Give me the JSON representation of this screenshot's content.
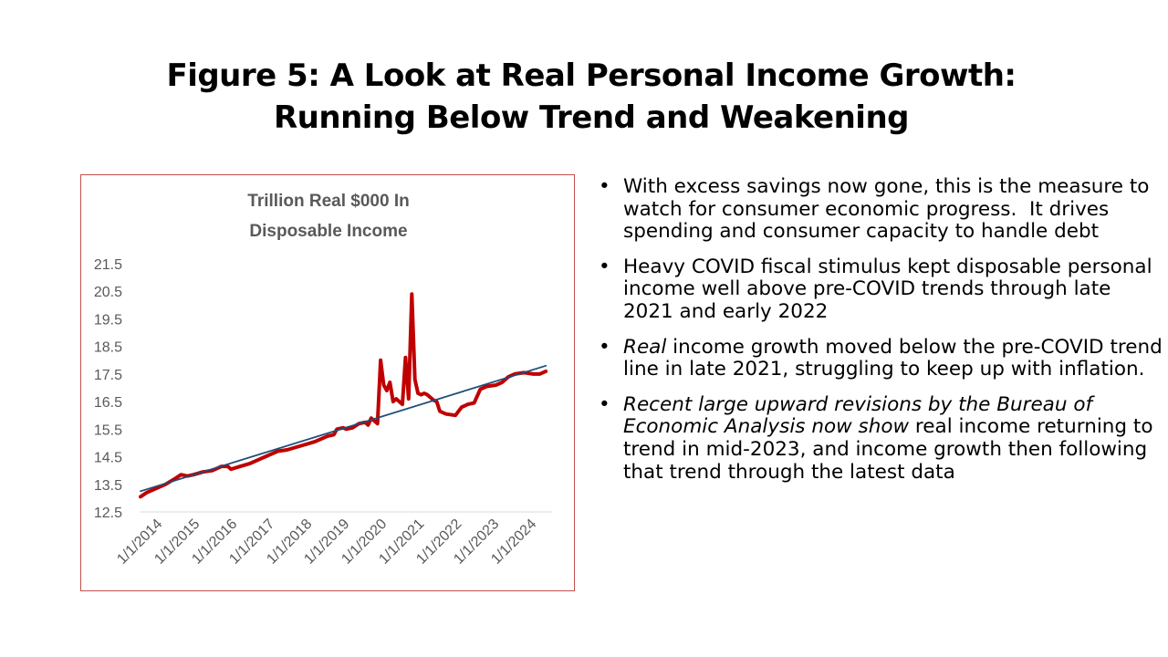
{
  "slide": {
    "title_line1": "Figure 5: A Look at Real Personal Income Growth:",
    "title_line2": "Running Below Trend and Weakening"
  },
  "bullets": [
    {
      "parts": [
        {
          "text": "With excess savings now gone, this is the measure to watch for consumer economic progress.  It drives spending and consumer capacity to handle debt",
          "italic": false
        }
      ]
    },
    {
      "parts": [
        {
          "text": "Heavy COVID fiscal stimulus kept disposable personal income well above pre-COVID trends through late 2021 and early 2022",
          "italic": false
        }
      ]
    },
    {
      "parts": [
        {
          "text": "Real",
          "italic": true
        },
        {
          "text": " income growth moved below the pre-COVID trend line in late 2021, struggling to keep up with inflation.",
          "italic": false
        }
      ]
    },
    {
      "parts": [
        {
          "text": "Recent large upward revisions by the Bureau of Economic Analysis now show",
          "italic": true
        },
        {
          "text": " real income returning to trend in mid-2023, and income growth then following that trend through the latest data",
          "italic": false
        }
      ]
    }
  ],
  "chart_data": {
    "type": "line",
    "title_line1": "Trillion Real $000 In",
    "title_line2": "Disposable Income",
    "xlabel": "",
    "ylabel": "",
    "ylim": [
      12.5,
      21.5
    ],
    "yticks": [
      "21.5",
      "20.5",
      "19.5",
      "18.5",
      "17.5",
      "16.5",
      "15.5",
      "14.5",
      "13.5",
      "12.5"
    ],
    "xticks": [
      "1/1/2014",
      "1/1/2015",
      "1/1/2016",
      "1/1/2017",
      "1/1/2018",
      "1/1/2019",
      "1/1/2020",
      "1/1/2021",
      "1/1/2022",
      "1/1/2023",
      "1/1/2024"
    ],
    "xrange": [
      "2014-01",
      "2025-01"
    ],
    "grid": false,
    "series": [
      {
        "color": "#c00000",
        "points": [
          [
            "2014-01",
            13.05
          ],
          [
            "2014-03",
            13.2
          ],
          [
            "2014-06",
            13.35
          ],
          [
            "2014-09",
            13.5
          ],
          [
            "2014-12",
            13.7
          ],
          [
            "2015-02",
            13.85
          ],
          [
            "2015-04",
            13.8
          ],
          [
            "2015-06",
            13.85
          ],
          [
            "2015-09",
            13.95
          ],
          [
            "2015-12",
            14.0
          ],
          [
            "2016-03",
            14.15
          ],
          [
            "2016-05",
            14.15
          ],
          [
            "2016-06",
            14.05
          ],
          [
            "2016-09",
            14.15
          ],
          [
            "2016-12",
            14.25
          ],
          [
            "2017-03",
            14.4
          ],
          [
            "2017-06",
            14.55
          ],
          [
            "2017-09",
            14.7
          ],
          [
            "2017-12",
            14.75
          ],
          [
            "2018-03",
            14.85
          ],
          [
            "2018-06",
            14.95
          ],
          [
            "2018-09",
            15.05
          ],
          [
            "2018-12",
            15.2
          ],
          [
            "2019-01",
            15.25
          ],
          [
            "2019-03",
            15.3
          ],
          [
            "2019-04",
            15.5
          ],
          [
            "2019-06",
            15.55
          ],
          [
            "2019-07",
            15.5
          ],
          [
            "2019-09",
            15.55
          ],
          [
            "2019-11",
            15.7
          ],
          [
            "2020-01",
            15.75
          ],
          [
            "2020-02",
            15.65
          ],
          [
            "2020-03",
            15.9
          ],
          [
            "2020-05",
            15.7
          ],
          [
            "2020-06",
            18.0
          ],
          [
            "2020-07",
            17.1
          ],
          [
            "2020-08",
            16.9
          ],
          [
            "2020-09",
            17.2
          ],
          [
            "2020-10",
            16.5
          ],
          [
            "2020-11",
            16.6
          ],
          [
            "2020-12",
            16.5
          ],
          [
            "2021-01",
            16.4
          ],
          [
            "2021-02",
            18.1
          ],
          [
            "2021-03",
            16.6
          ],
          [
            "2021-04",
            20.4
          ],
          [
            "2021-05",
            17.3
          ],
          [
            "2021-06",
            16.8
          ],
          [
            "2021-07",
            16.75
          ],
          [
            "2021-08",
            16.8
          ],
          [
            "2021-09",
            16.75
          ],
          [
            "2021-10",
            16.65
          ],
          [
            "2021-11",
            16.55
          ],
          [
            "2021-12",
            16.5
          ],
          [
            "2022-01",
            16.15
          ],
          [
            "2022-03",
            16.05
          ],
          [
            "2022-06",
            16.0
          ],
          [
            "2022-08",
            16.3
          ],
          [
            "2022-10",
            16.4
          ],
          [
            "2022-12",
            16.45
          ],
          [
            "2023-02",
            16.95
          ],
          [
            "2023-04",
            17.05
          ],
          [
            "2023-07",
            17.1
          ],
          [
            "2023-09",
            17.2
          ],
          [
            "2023-11",
            17.4
          ],
          [
            "2024-01",
            17.5
          ],
          [
            "2024-04",
            17.55
          ],
          [
            "2024-07",
            17.5
          ],
          [
            "2024-09",
            17.5
          ],
          [
            "2024-11",
            17.6
          ]
        ]
      },
      {
        "color": "#1f4e79",
        "points": [
          [
            "2014-01",
            13.25
          ],
          [
            "2024-11",
            17.8
          ]
        ]
      }
    ]
  }
}
